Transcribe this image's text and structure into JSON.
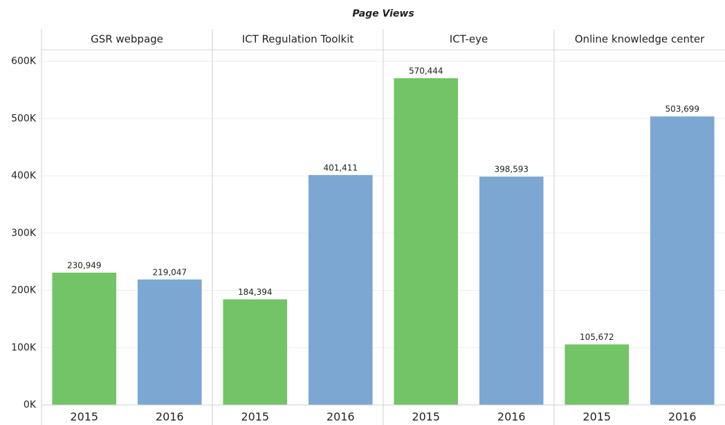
{
  "chart_data": {
    "type": "bar",
    "title": "Page Views",
    "categories": [
      "GSR webpage",
      "ICT Regulation Toolkit",
      "ICT-eye",
      "Online knowledge center"
    ],
    "series": [
      {
        "name": "2015",
        "color": "#72c466",
        "values": [
          230949,
          184394,
          570444,
          105672
        ],
        "value_labels": [
          "230,949",
          "184,394",
          "570,444",
          "105,672"
        ]
      },
      {
        "name": "2016",
        "color": "#7ba7d2",
        "values": [
          219047,
          401411,
          398593,
          503699
        ],
        "value_labels": [
          "219,047",
          "401,411",
          "398,593",
          "503,699"
        ]
      }
    ],
    "ylim": [
      0,
      620000
    ],
    "yticks": [
      {
        "value": 0,
        "label": "0K"
      },
      {
        "value": 100000,
        "label": "100K"
      },
      {
        "value": 200000,
        "label": "200K"
      },
      {
        "value": 300000,
        "label": "300K"
      },
      {
        "value": 400000,
        "label": "400K"
      },
      {
        "value": 500000,
        "label": "500K"
      },
      {
        "value": 600000,
        "label": "600K"
      }
    ],
    "grid": true
  }
}
